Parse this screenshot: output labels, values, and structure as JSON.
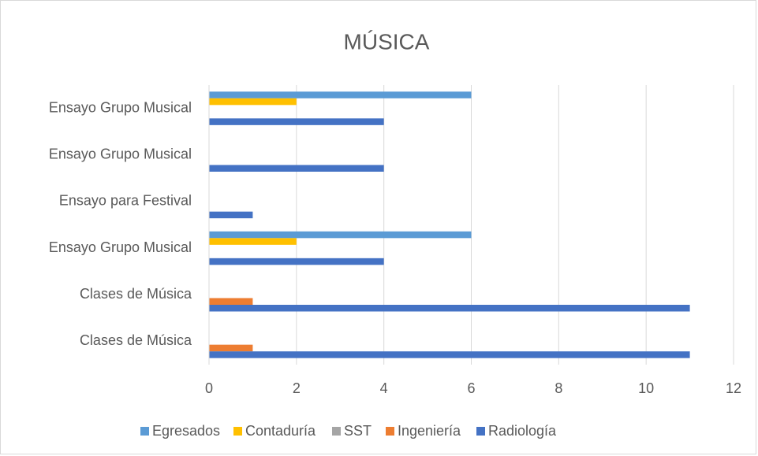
{
  "chart_data": {
    "type": "hbar",
    "title": "MÚSICA",
    "categories": [
      "Ensayo Grupo Musical",
      "Ensayo Grupo Musical",
      "Ensayo para Festival",
      "Ensayo Grupo Musical",
      "Clases de Música",
      "Clases de Música"
    ],
    "series": [
      {
        "name": "Egresados",
        "color": "#5b9bd5",
        "values": [
          6,
          null,
          null,
          6,
          null,
          null
        ]
      },
      {
        "name": "Contaduría",
        "color": "#ffc000",
        "values": [
          2,
          null,
          null,
          2,
          null,
          null
        ]
      },
      {
        "name": "SST",
        "color": "#a5a5a5",
        "values": [
          null,
          null,
          null,
          null,
          null,
          null
        ]
      },
      {
        "name": "Ingeniería",
        "color": "#ed7d31",
        "values": [
          null,
          null,
          null,
          null,
          1,
          1
        ]
      },
      {
        "name": "Radiología",
        "color": "#4472c4",
        "values": [
          4,
          4,
          1,
          4,
          11,
          11
        ]
      }
    ],
    "xlim": [
      0,
      12
    ],
    "xticks": [
      0,
      2,
      4,
      6,
      8,
      10,
      12
    ],
    "grid": true,
    "legend": "bottom"
  }
}
